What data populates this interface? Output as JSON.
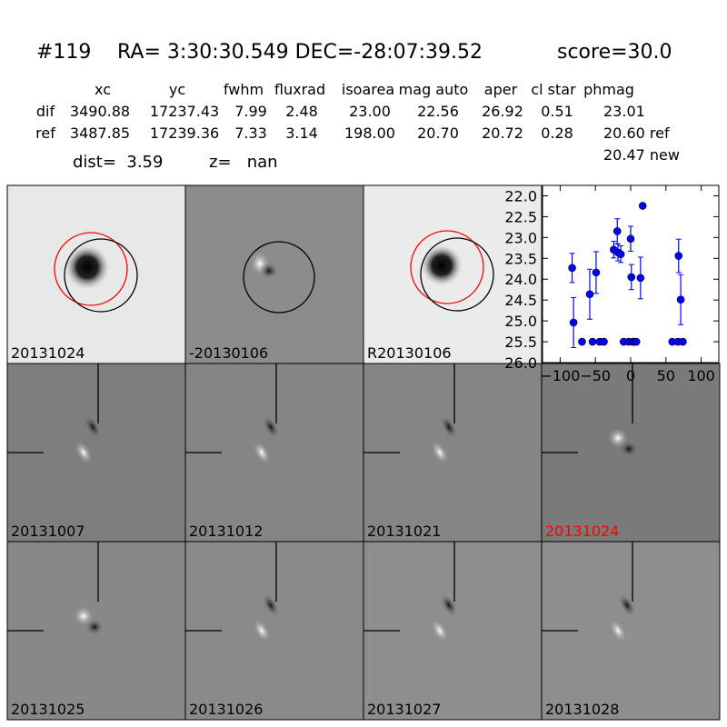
{
  "header": {
    "id": "#119",
    "coords": "RA= 3:30:30.549 DEC=-28:07:39.52",
    "score": "score=30.0"
  },
  "table": {
    "columns": [
      "xc",
      "yc",
      "fwhm",
      "fluxrad",
      "isoarea",
      "mag auto",
      "aper",
      "cl star",
      "phmag"
    ],
    "rows": [
      [
        "dif",
        "3490.88",
        "17237.43",
        "7.99",
        "2.48",
        "23.00",
        "22.56",
        "26.92",
        "0.51",
        "23.01"
      ],
      [
        "ref",
        "3487.85",
        "17239.36",
        "7.33",
        "3.14",
        "198.00",
        "20.70",
        "20.72",
        "0.28",
        "20.60 ref"
      ]
    ],
    "extra": "20.47 new"
  },
  "dist": "dist=  3.59",
  "z": "z=   nan",
  "panels": [
    "20131024",
    "-20130106",
    "R20130106",
    "20131007",
    "20131012",
    "20131021",
    "20131024",
    "20131025",
    "20131026",
    "20131027",
    "20131028"
  ],
  "chart_data": {
    "type": "scatter",
    "color": "#0000ff",
    "x": [
      -83,
      -81,
      -69,
      -54,
      -44,
      -38,
      -10,
      -3,
      3,
      5,
      8,
      59,
      67,
      74,
      -58,
      -49,
      -24,
      -19,
      -18,
      -14,
      0,
      1,
      14,
      17,
      68,
      71
    ],
    "values": [
      23.73,
      25.04,
      25.5,
      25.5,
      25.5,
      25.5,
      25.5,
      25.5,
      25.5,
      25.5,
      25.5,
      25.5,
      25.5,
      25.5,
      24.36,
      23.84,
      23.29,
      22.85,
      23.36,
      23.4,
      23.03,
      23.95,
      23.97,
      22.24,
      23.44,
      24.49
    ],
    "errors": [
      0.35,
      0.6,
      0.05,
      0.05,
      0.05,
      0.05,
      0.05,
      0.05,
      0.05,
      0.05,
      0.05,
      0.05,
      0.05,
      0.05,
      0.6,
      0.5,
      0.2,
      0.3,
      0.2,
      0.2,
      0.3,
      0.3,
      0.5,
      0.05,
      0.4,
      0.6
    ],
    "xlim": [
      -125,
      125
    ],
    "ylim": [
      26.0,
      21.75
    ],
    "xticks": [
      {
        "value": -100,
        "label": "−100"
      },
      {
        "value": -50,
        "label": "−50"
      },
      0,
      50,
      100
    ],
    "yticks": [
      {
        "value": 22,
        "label": "22.0"
      },
      {
        "value": 22.5,
        "label": "22.5"
      },
      {
        "value": 23,
        "label": "23.0"
      },
      {
        "value": 23.5,
        "label": "23.5"
      },
      {
        "value": 24,
        "label": "24.0"
      },
      {
        "value": 24.5,
        "label": "24.5"
      },
      {
        "value": 25,
        "label": "25.0"
      },
      {
        "value": 25.5,
        "label": "25.5"
      },
      {
        "value": 26,
        "label": "26.0"
      }
    ],
    "grid": false
  }
}
